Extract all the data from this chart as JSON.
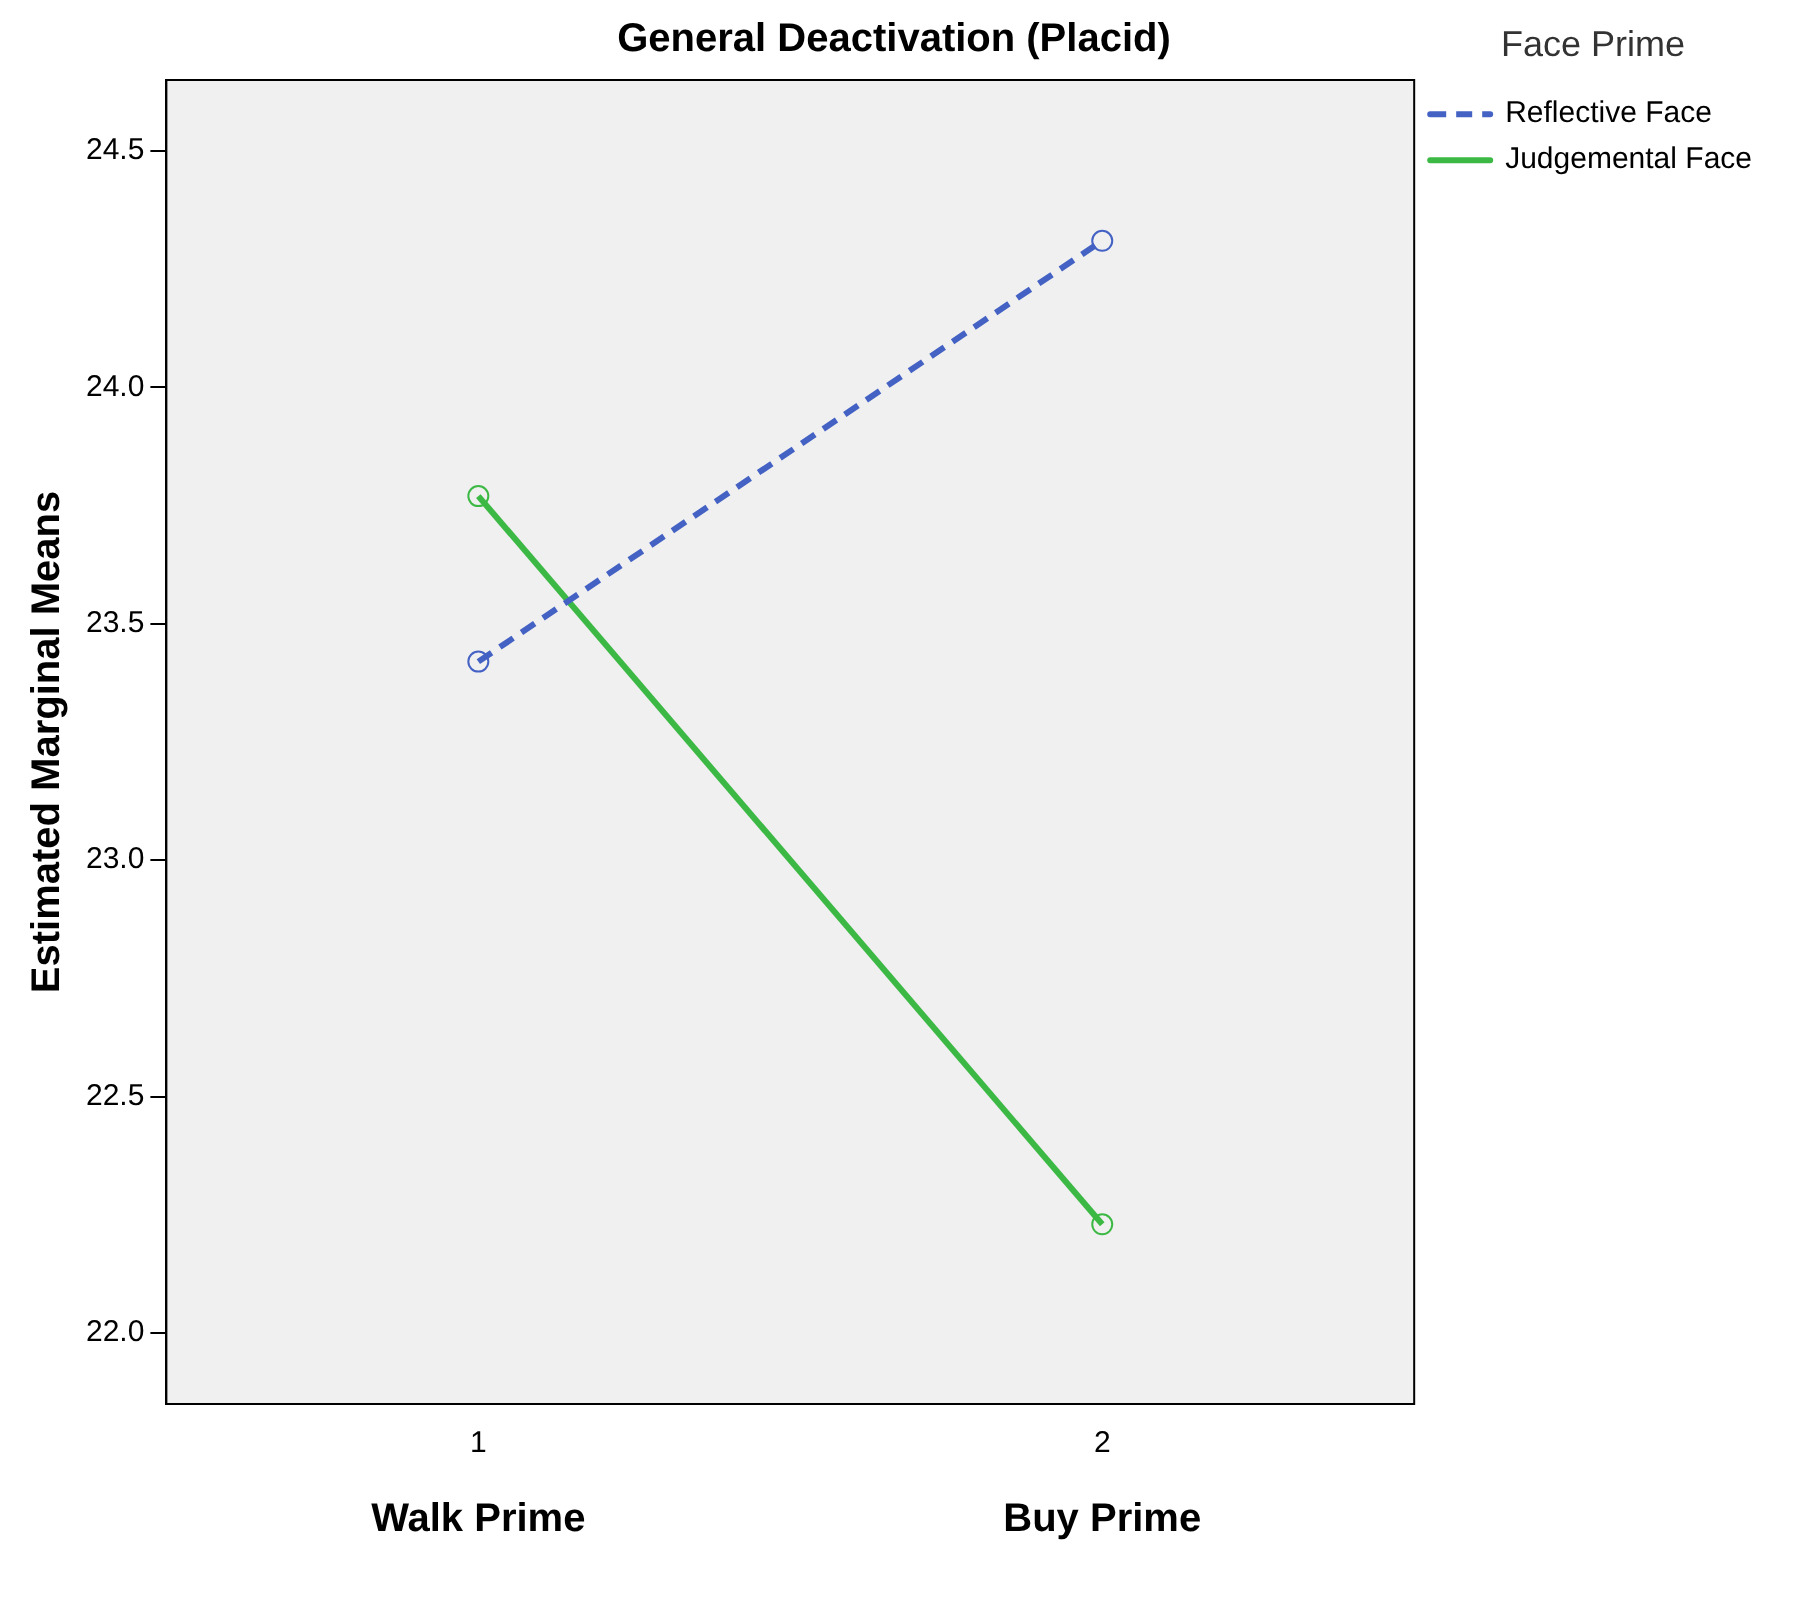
{
  "chart_data": {
    "type": "line",
    "title": "General Deactivation (Placid)",
    "ylabel": "Estimated Marginal Means",
    "legend_title": "Face Prime",
    "categories": [
      "1",
      "2"
    ],
    "annotations": [
      "Walk Prime",
      "Buy Prime"
    ],
    "series": [
      {
        "name": "Reflective Face",
        "color": "#4462c4",
        "values": [
          23.42,
          24.31
        ],
        "line_style": "dashed"
      },
      {
        "name": "Judgemental Face",
        "color": "#3cb944",
        "values": [
          23.77,
          22.23
        ],
        "line_style": "solid"
      }
    ],
    "ylim": [
      21.85,
      24.65
    ],
    "yticks": [
      {
        "value": 22,
        "label": "22.0"
      },
      {
        "value": 22.5,
        "label": "22.5"
      },
      {
        "value": 23,
        "label": "23.0"
      },
      {
        "value": 23.5,
        "label": "23.5"
      },
      {
        "value": 24,
        "label": "24.0"
      },
      {
        "value": 24.5,
        "label": "24.5"
      }
    ],
    "grid": false,
    "legend": "top right",
    "marker": "circle"
  }
}
